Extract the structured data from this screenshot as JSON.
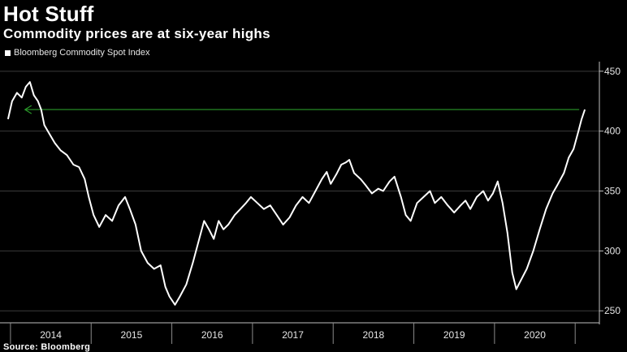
{
  "chart_data": {
    "type": "line",
    "title": "Hot Stuff",
    "subtitle": "Commodity prices are at six-year highs",
    "source": "Source: Bloomberg",
    "series": [
      {
        "name": "Bloomberg Commodity Spot Index",
        "color": "#ffffff",
        "points": [
          [
            2013.97,
            410
          ],
          [
            2014.02,
            425
          ],
          [
            2014.08,
            432
          ],
          [
            2014.14,
            428
          ],
          [
            2014.19,
            437
          ],
          [
            2014.24,
            441
          ],
          [
            2014.29,
            430
          ],
          [
            2014.34,
            425
          ],
          [
            2014.38,
            418
          ],
          [
            2014.42,
            405
          ],
          [
            2014.48,
            398
          ],
          [
            2014.55,
            390
          ],
          [
            2014.62,
            384
          ],
          [
            2014.7,
            380
          ],
          [
            2014.78,
            372
          ],
          [
            2014.85,
            370
          ],
          [
            2014.92,
            360
          ],
          [
            2014.97,
            345
          ],
          [
            2015.03,
            330
          ],
          [
            2015.1,
            320
          ],
          [
            2015.18,
            330
          ],
          [
            2015.26,
            325
          ],
          [
            2015.34,
            338
          ],
          [
            2015.42,
            345
          ],
          [
            2015.48,
            335
          ],
          [
            2015.55,
            322
          ],
          [
            2015.62,
            300
          ],
          [
            2015.7,
            290
          ],
          [
            2015.78,
            285
          ],
          [
            2015.86,
            288
          ],
          [
            2015.92,
            270
          ],
          [
            2015.97,
            262
          ],
          [
            2016.04,
            255
          ],
          [
            2016.1,
            262
          ],
          [
            2016.18,
            272
          ],
          [
            2016.26,
            290
          ],
          [
            2016.34,
            310
          ],
          [
            2016.4,
            325
          ],
          [
            2016.46,
            318
          ],
          [
            2016.52,
            310
          ],
          [
            2016.58,
            325
          ],
          [
            2016.64,
            318
          ],
          [
            2016.7,
            322
          ],
          [
            2016.78,
            330
          ],
          [
            2016.85,
            335
          ],
          [
            2016.92,
            340
          ],
          [
            2016.98,
            345
          ],
          [
            2017.06,
            340
          ],
          [
            2017.14,
            335
          ],
          [
            2017.22,
            338
          ],
          [
            2017.3,
            330
          ],
          [
            2017.38,
            322
          ],
          [
            2017.46,
            328
          ],
          [
            2017.54,
            338
          ],
          [
            2017.62,
            345
          ],
          [
            2017.7,
            340
          ],
          [
            2017.78,
            350
          ],
          [
            2017.86,
            360
          ],
          [
            2017.92,
            366
          ],
          [
            2017.97,
            356
          ],
          [
            2018.04,
            364
          ],
          [
            2018.1,
            372
          ],
          [
            2018.16,
            374
          ],
          [
            2018.2,
            376
          ],
          [
            2018.26,
            365
          ],
          [
            2018.34,
            360
          ],
          [
            2018.4,
            355
          ],
          [
            2018.48,
            348
          ],
          [
            2018.56,
            352
          ],
          [
            2018.62,
            350
          ],
          [
            2018.7,
            358
          ],
          [
            2018.76,
            362
          ],
          [
            2018.84,
            345
          ],
          [
            2018.9,
            330
          ],
          [
            2018.96,
            325
          ],
          [
            2019.04,
            340
          ],
          [
            2019.12,
            345
          ],
          [
            2019.2,
            350
          ],
          [
            2019.26,
            340
          ],
          [
            2019.34,
            345
          ],
          [
            2019.42,
            338
          ],
          [
            2019.5,
            332
          ],
          [
            2019.58,
            338
          ],
          [
            2019.64,
            342
          ],
          [
            2019.7,
            335
          ],
          [
            2019.78,
            345
          ],
          [
            2019.86,
            350
          ],
          [
            2019.92,
            342
          ],
          [
            2019.98,
            348
          ],
          [
            2020.04,
            358
          ],
          [
            2020.1,
            340
          ],
          [
            2020.16,
            315
          ],
          [
            2020.22,
            282
          ],
          [
            2020.27,
            268
          ],
          [
            2020.33,
            276
          ],
          [
            2020.4,
            285
          ],
          [
            2020.48,
            300
          ],
          [
            2020.56,
            318
          ],
          [
            2020.64,
            335
          ],
          [
            2020.72,
            348
          ],
          [
            2020.78,
            355
          ],
          [
            2020.86,
            365
          ],
          [
            2020.92,
            378
          ],
          [
            2020.98,
            385
          ],
          [
            2021.04,
            400
          ],
          [
            2021.08,
            410
          ],
          [
            2021.12,
            418
          ]
        ]
      }
    ],
    "reference_line": {
      "y": 418,
      "from_x": 2014.18,
      "to_x": 2021.05,
      "color": "#2a9a2a",
      "arrow": "left"
    },
    "x_ticks": [
      "2014",
      "2015",
      "2016",
      "2017",
      "2018",
      "2019",
      "2020"
    ],
    "y_ticks": [
      250,
      300,
      350,
      400,
      450
    ],
    "xlim": [
      2013.87,
      2021.3
    ],
    "ylim": [
      240,
      458
    ],
    "grid": "horizontal",
    "y_axis_position": "right",
    "legend_position": "top-left"
  }
}
